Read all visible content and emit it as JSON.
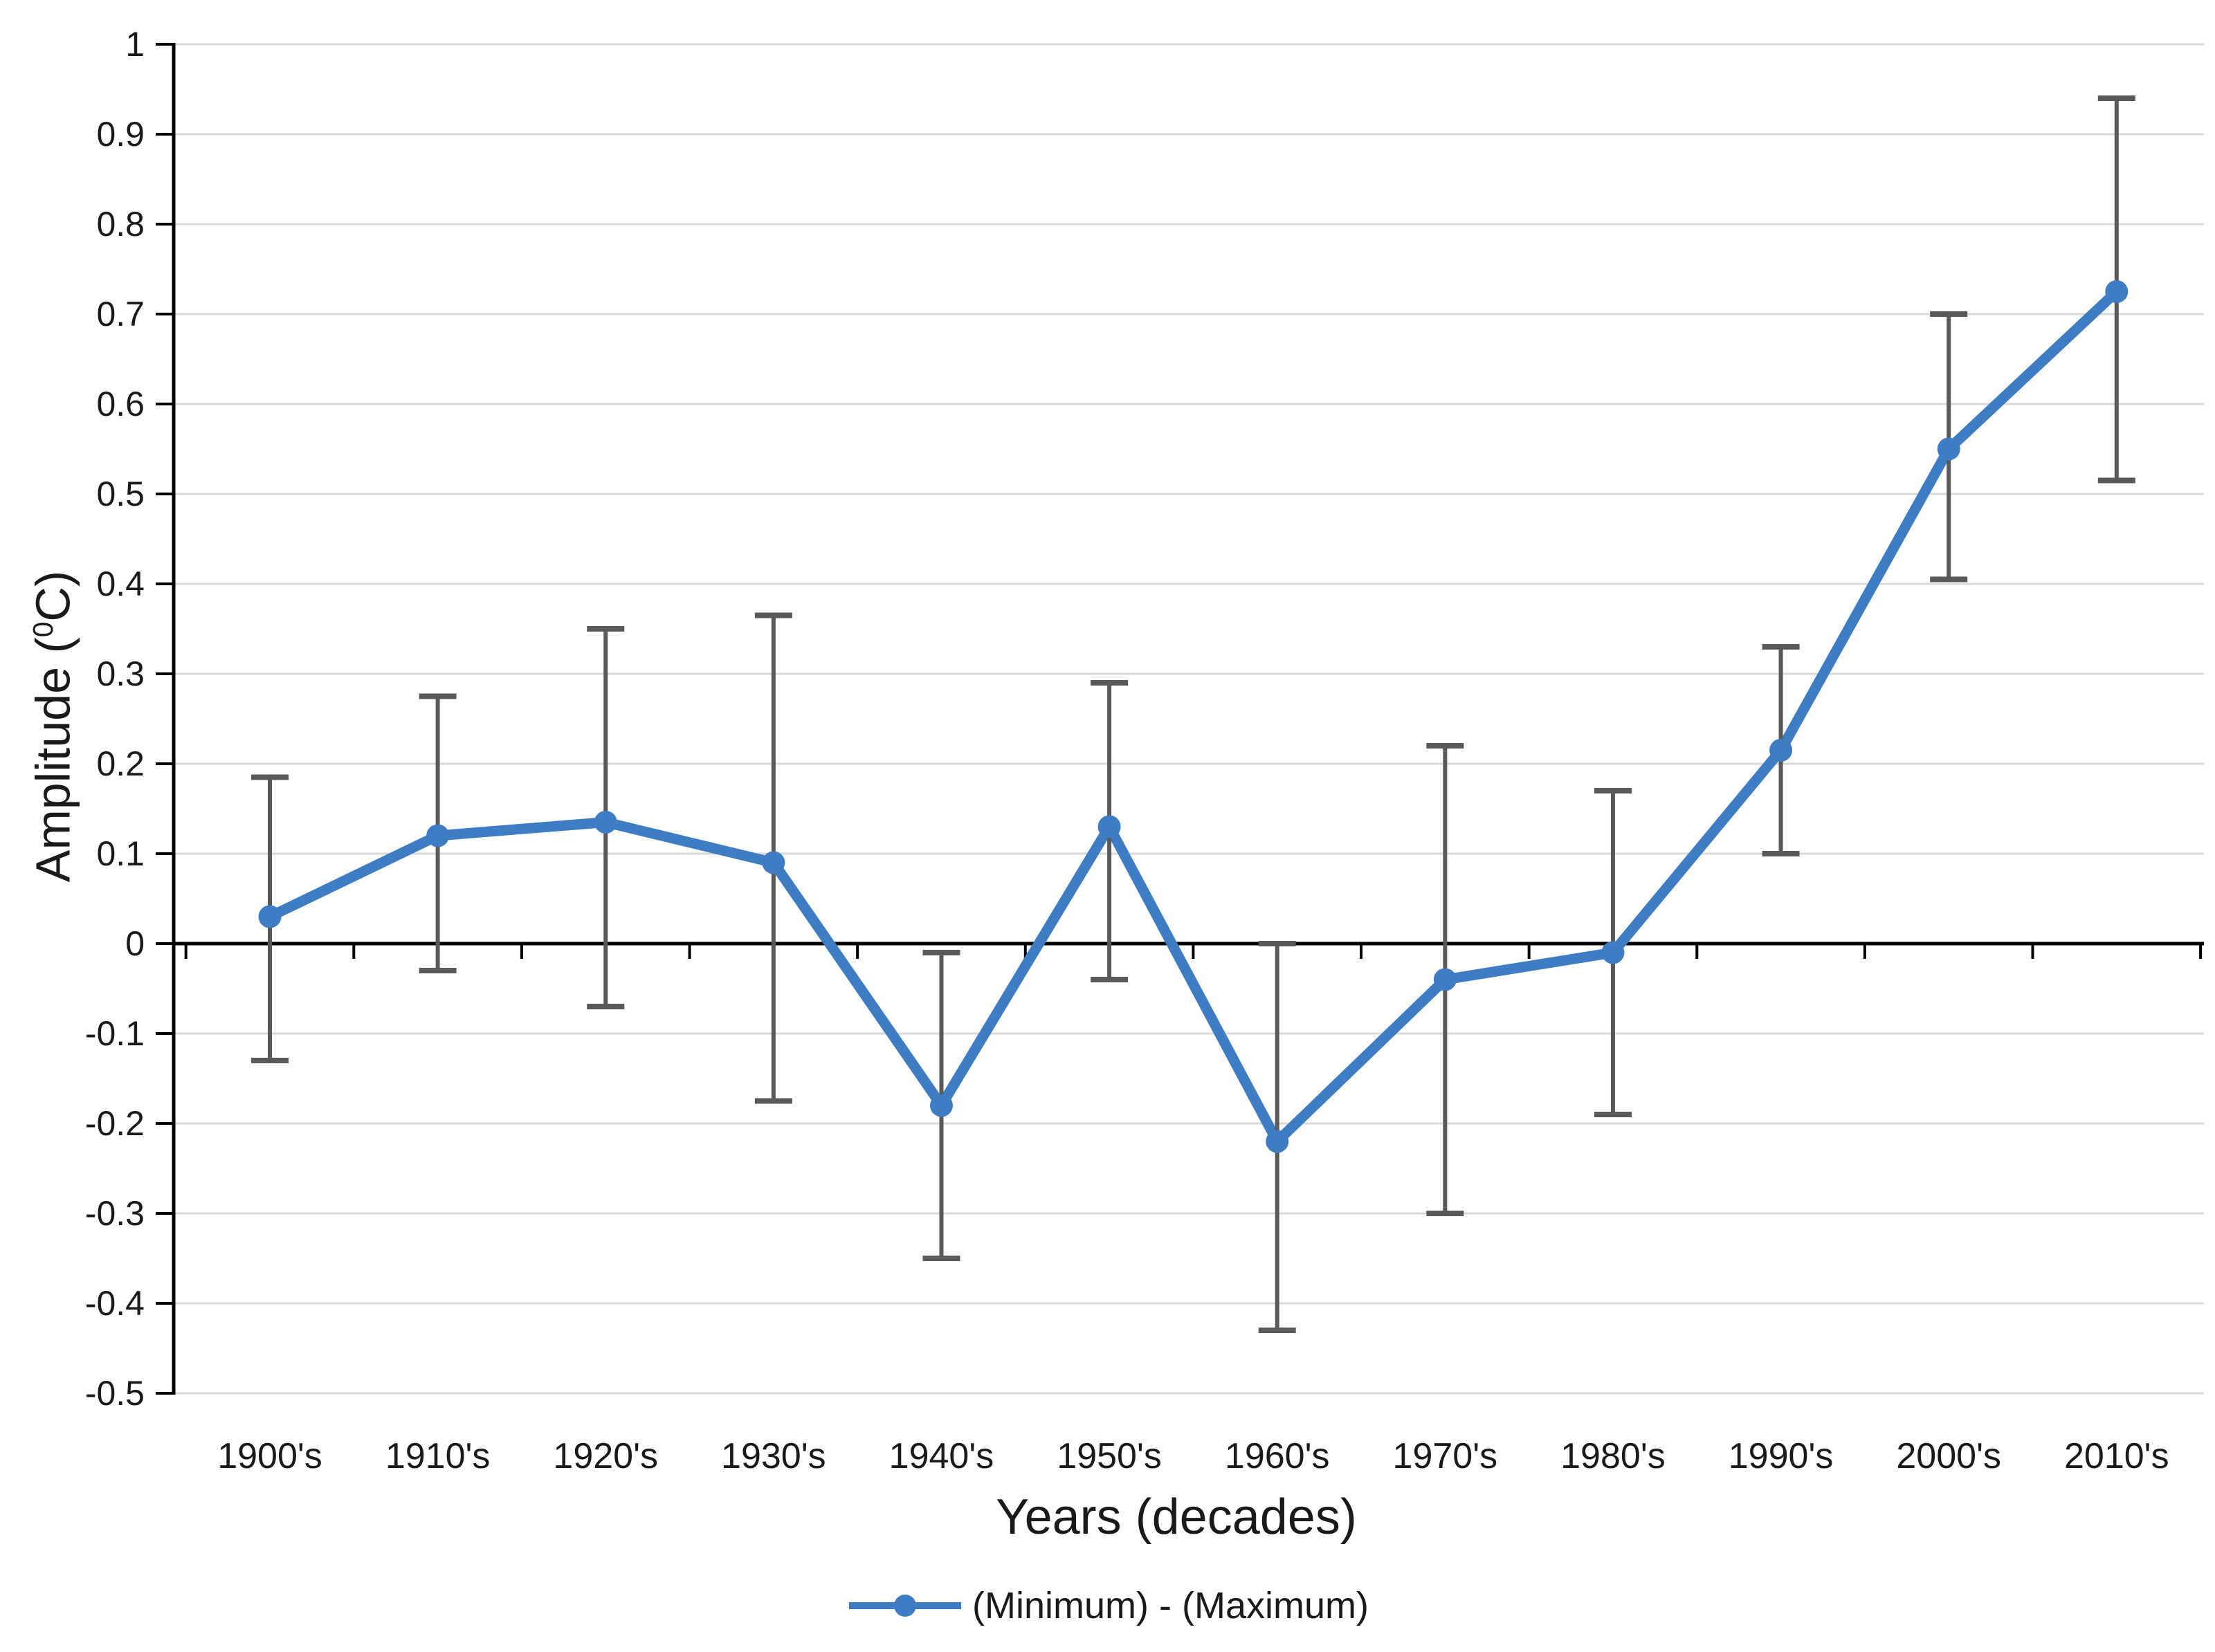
{
  "chart_data": {
    "type": "line",
    "title": "",
    "xlabel": "Years (decades)",
    "ylabel": "Amplitude (⁰C)",
    "ylabel_parts": {
      "pre": "Amplitude (",
      "sup": "0",
      "post": "C)"
    },
    "legend": [
      "(Minimum) - (Maximum)"
    ],
    "legend_position": "bottom-center",
    "grid": true,
    "categories": [
      "1900's",
      "1910's",
      "1920's",
      "1930's",
      "1940's",
      "1950's",
      "1960's",
      "1970's",
      "1980's",
      "1990's",
      "2000's",
      "2010's"
    ],
    "series": [
      {
        "name": "(Minimum) - (Maximum)",
        "marker": "circle",
        "values": [
          0.03,
          0.12,
          0.135,
          0.09,
          -0.18,
          0.13,
          -0.22,
          -0.04,
          -0.01,
          0.215,
          0.55,
          0.725
        ],
        "error_high": [
          0.185,
          0.275,
          0.35,
          0.365,
          -0.01,
          0.29,
          0.0,
          0.22,
          0.17,
          0.33,
          0.7,
          0.94
        ],
        "error_low": [
          -0.13,
          -0.03,
          -0.07,
          -0.175,
          -0.35,
          -0.04,
          -0.43,
          -0.3,
          -0.19,
          0.1,
          0.405,
          0.515
        ]
      }
    ],
    "ylim": [
      -0.5,
      1
    ],
    "ytick_step": 0.1,
    "ytick_labels": [
      "1",
      "0.9",
      "0.8",
      "0.7",
      "0.6",
      "0.5",
      "0.4",
      "0.3",
      "0.2",
      "0.1",
      "0",
      "-0.1",
      "-0.2",
      "-0.3",
      "-0.4",
      "-0.5"
    ]
  },
  "style": {
    "line_color": "#3E7DC4",
    "error_bar_color": "#595959",
    "gridline_color": "#D9D9D9",
    "axis_color": "#000000",
    "text_color": "#1A1A1A"
  }
}
